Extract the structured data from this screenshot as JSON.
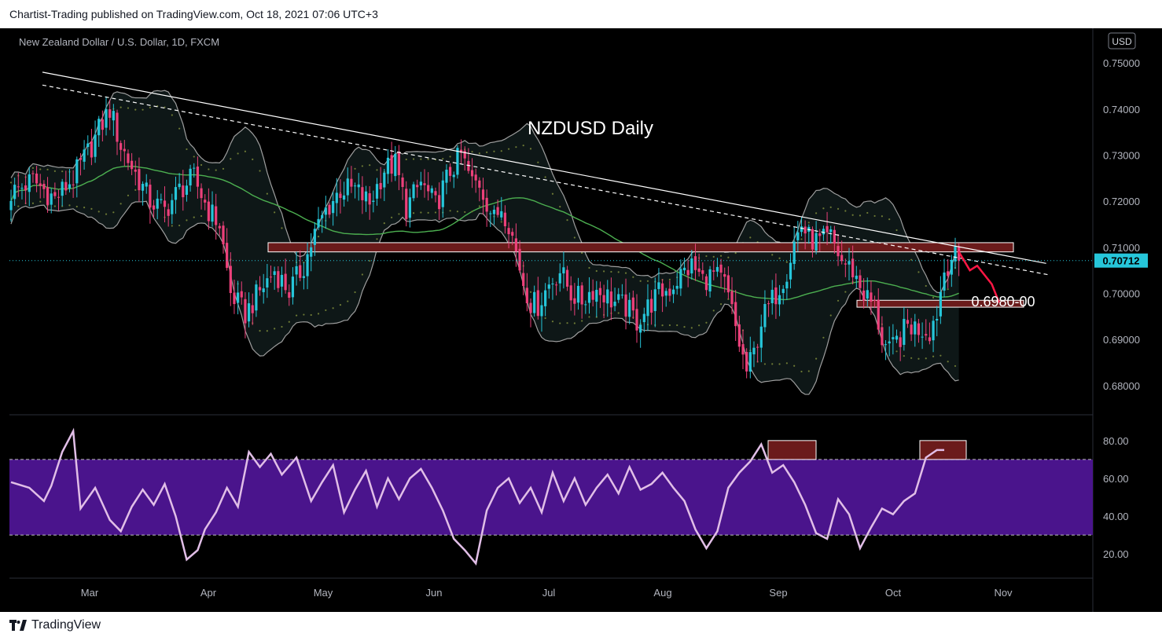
{
  "header": {
    "published_text": "Chartist-Trading published on TradingView.com, Oct 18, 2021 07:06 UTC+3"
  },
  "footer": {
    "brand": "TradingView"
  },
  "chart": {
    "symbol_line": "New Zealand Dollar / U.S. Dollar, 1D, FXCM",
    "currency_badge": "USD",
    "annotation_title": "NZDUSD Daily",
    "level_label": "0.6980-00",
    "price_label": "0.70712"
  },
  "colors": {
    "background": "#000000",
    "bull": "#26c6da",
    "bear": "#ec407a",
    "ma": "#4caf50",
    "bands": "#9e9e9e",
    "zone": "#6b1b1b",
    "rsi_line": "#e1bee7",
    "rsi_band": "#4a148c",
    "projection": "#ff1744"
  },
  "chart_data": [
    {
      "type": "candlestick",
      "title": "NZDUSD Daily",
      "instrument": "New Zealand Dollar / U.S. Dollar, 1D, FXCM",
      "x_ticks": [
        "Mar",
        "Apr",
        "May",
        "Jun",
        "Jul",
        "Aug",
        "Sep",
        "Oct",
        "Nov"
      ],
      "y_ticks": [
        "0.75000",
        "0.74000",
        "0.73000",
        "0.72000",
        "0.71000",
        "0.70000",
        "0.69000",
        "0.68000"
      ],
      "ylim": [
        0.674,
        0.7565
      ],
      "last_price": 0.70712,
      "close_path": [
        [
          0,
          0.7218
        ],
        [
          6,
          0.7245
        ],
        [
          12,
          0.7205
        ],
        [
          17,
          0.725
        ],
        [
          22,
          0.732
        ],
        [
          24,
          0.7355
        ],
        [
          27,
          0.74
        ],
        [
          30,
          0.732
        ],
        [
          34,
          0.726
        ],
        [
          38,
          0.72
        ],
        [
          42,
          0.718
        ],
        [
          46,
          0.7225
        ],
        [
          50,
          0.725
        ],
        [
          54,
          0.718
        ],
        [
          57,
          0.715
        ],
        [
          60,
          0.7
        ],
        [
          64,
          0.6955
        ],
        [
          68,
          0.7005
        ],
        [
          72,
          0.705
        ],
        [
          76,
          0.7005
        ],
        [
          80,
          0.706
        ],
        [
          83,
          0.713
        ],
        [
          86,
          0.718
        ],
        [
          90,
          0.7225
        ],
        [
          94,
          0.7225
        ],
        [
          98,
          0.7195
        ],
        [
          102,
          0.727
        ],
        [
          105,
          0.728
        ],
        [
          108,
          0.7185
        ],
        [
          112,
          0.724
        ],
        [
          116,
          0.719
        ],
        [
          120,
          0.7265
        ],
        [
          123,
          0.73
        ],
        [
          126,
          0.724
        ],
        [
          128,
          0.724
        ],
        [
          130,
          0.72
        ],
        [
          132,
          0.716
        ],
        [
          134,
          0.719
        ],
        [
          136,
          0.7155
        ],
        [
          138,
          0.709
        ],
        [
          140,
          0.7025
        ],
        [
          142,
          0.698
        ],
        [
          144,
          0.6975
        ],
        [
          147,
          0.702
        ],
        [
          150,
          0.705
        ],
        [
          153,
          0.7
        ],
        [
          156,
          0.6985
        ],
        [
          159,
          0.701
        ],
        [
          162,
          0.7
        ],
        [
          165,
          0.698
        ],
        [
          168,
          0.697
        ],
        [
          171,
          0.694
        ],
        [
          174,
          0.697
        ],
        [
          177,
          0.7
        ],
        [
          180,
          0.701
        ],
        [
          183,
          0.704
        ],
        [
          186,
          0.706
        ],
        [
          189,
          0.703
        ],
        [
          192,
          0.704
        ],
        [
          195,
          0.702
        ],
        [
          197,
          0.696
        ],
        [
          199,
          0.689
        ],
        [
          201,
          0.683
        ],
        [
          203,
          0.687
        ],
        [
          205,
          0.694
        ],
        [
          207,
          0.697
        ],
        [
          209,
          0.7
        ],
        [
          212,
          0.705
        ],
        [
          214,
          0.711
        ],
        [
          216,
          0.715
        ],
        [
          218,
          0.712
        ],
        [
          221,
          0.711
        ],
        [
          224,
          0.712
        ],
        [
          227,
          0.707
        ],
        [
          230,
          0.705
        ],
        [
          233,
          0.7
        ],
        [
          236,
          0.697
        ],
        [
          238,
          0.69
        ],
        [
          240,
          0.687
        ],
        [
          242,
          0.6895
        ],
        [
          245,
          0.693
        ],
        [
          248,
          0.6925
        ],
        [
          251,
          0.692
        ],
        [
          253,
          0.696
        ],
        [
          255,
          0.705
        ],
        [
          257,
          0.708
        ],
        [
          259,
          0.7071
        ]
      ],
      "series": [
        {
          "name": "resistance trendline",
          "x": [
            0,
            285
          ],
          "y": [
            0.748,
            0.7065
          ]
        },
        {
          "name": "projection",
          "x": [
            259,
            262,
            264,
            266,
            268,
            270
          ],
          "y": [
            0.709,
            0.705,
            0.706,
            0.704,
            0.702,
            0.698
          ]
        }
      ],
      "annotations": [
        {
          "text": "NZDUSD Daily"
        },
        {
          "text": "0.6980-00",
          "y_range": [
            0.697,
            0.6985
          ]
        },
        {
          "text": "",
          "y_range": [
            0.709,
            0.711
          ]
        }
      ]
    },
    {
      "type": "line",
      "y_ticks": [
        "80.00",
        "60.00",
        "40.00",
        "20.00"
      ],
      "ylim": [
        8,
        92
      ],
      "band": [
        30,
        70
      ],
      "rsi_path": [
        [
          0,
          58
        ],
        [
          5,
          55
        ],
        [
          9,
          48
        ],
        [
          11,
          56
        ],
        [
          14,
          74
        ],
        [
          17,
          85
        ],
        [
          19,
          44
        ],
        [
          23,
          55
        ],
        [
          27,
          38
        ],
        [
          30,
          32
        ],
        [
          33,
          45
        ],
        [
          36,
          54
        ],
        [
          39,
          46
        ],
        [
          42,
          57
        ],
        [
          45,
          40
        ],
        [
          48,
          17
        ],
        [
          51,
          22
        ],
        [
          53,
          33
        ],
        [
          56,
          42
        ],
        [
          59,
          55
        ],
        [
          62,
          45
        ],
        [
          65,
          74
        ],
        [
          68,
          66
        ],
        [
          71,
          73
        ],
        [
          74,
          62
        ],
        [
          78,
          71
        ],
        [
          82,
          48
        ],
        [
          85,
          58
        ],
        [
          88,
          67
        ],
        [
          91,
          42
        ],
        [
          94,
          54
        ],
        [
          97,
          64
        ],
        [
          100,
          45
        ],
        [
          103,
          60
        ],
        [
          106,
          49
        ],
        [
          109,
          60
        ],
        [
          112,
          65
        ],
        [
          115,
          55
        ],
        [
          118,
          43
        ],
        [
          121,
          28
        ],
        [
          124,
          22
        ],
        [
          127,
          15
        ],
        [
          130,
          43
        ],
        [
          133,
          55
        ],
        [
          136,
          60
        ],
        [
          139,
          47
        ],
        [
          142,
          55
        ],
        [
          145,
          42
        ],
        [
          148,
          63
        ],
        [
          151,
          48
        ],
        [
          154,
          60
        ],
        [
          157,
          46
        ],
        [
          160,
          55
        ],
        [
          163,
          62
        ],
        [
          166,
          52
        ],
        [
          169,
          66
        ],
        [
          172,
          54
        ],
        [
          175,
          57
        ],
        [
          178,
          63
        ],
        [
          181,
          55
        ],
        [
          184,
          48
        ],
        [
          187,
          33
        ],
        [
          190,
          23
        ],
        [
          193,
          32
        ],
        [
          196,
          55
        ],
        [
          199,
          63
        ],
        [
          202,
          69
        ],
        [
          205,
          78
        ],
        [
          208,
          63
        ],
        [
          211,
          67
        ],
        [
          214,
          58
        ],
        [
          217,
          46
        ],
        [
          220,
          31
        ],
        [
          223,
          28
        ],
        [
          226,
          49
        ],
        [
          229,
          41
        ],
        [
          232,
          23
        ],
        [
          235,
          34
        ],
        [
          238,
          44
        ],
        [
          241,
          41
        ],
        [
          244,
          48
        ],
        [
          247,
          52
        ],
        [
          250,
          71
        ],
        [
          253,
          75
        ],
        [
          255,
          75
        ]
      ],
      "annotations": [
        {
          "text": "",
          "y_range": [
            70,
            80
          ]
        },
        {
          "text": "",
          "y_range": [
            70,
            80
          ]
        }
      ]
    }
  ]
}
